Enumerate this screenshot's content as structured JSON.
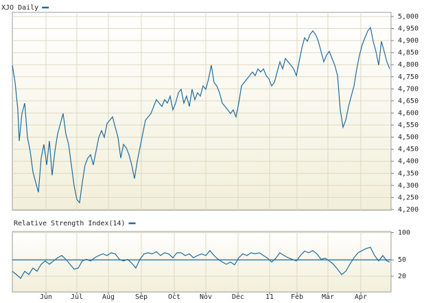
{
  "chart_data": [
    {
      "type": "line",
      "title": "XJO Daily",
      "xlim": [
        0,
        552
      ],
      "ylim": [
        4197,
        5017
      ],
      "yticks": [
        {
          "value": 4200,
          "label": "4,200"
        },
        {
          "value": 4250,
          "label": "4,250"
        },
        {
          "value": 4300,
          "label": "4,300"
        },
        {
          "value": 4350,
          "label": "4,350"
        },
        {
          "value": 4400,
          "label": "4,400"
        },
        {
          "value": 4450,
          "label": "4,450"
        },
        {
          "value": 4500,
          "label": "4,500"
        },
        {
          "value": 4550,
          "label": "4,550"
        },
        {
          "value": 4600,
          "label": "4,600"
        },
        {
          "value": 4650,
          "label": "4,650"
        },
        {
          "value": 4700,
          "label": "4,700"
        },
        {
          "value": 4750,
          "label": "4,750"
        },
        {
          "value": 4800,
          "label": "4,800"
        },
        {
          "value": 4850,
          "label": "4,850"
        },
        {
          "value": 4900,
          "label": "4,900"
        },
        {
          "value": 4950,
          "label": "4,950"
        },
        {
          "value": 5000,
          "label": "5,000"
        }
      ],
      "grid": true,
      "color": "#1c6b9e",
      "x": [
        0,
        4,
        8,
        10,
        14,
        18,
        22,
        26,
        30,
        34,
        38,
        42,
        46,
        50,
        54,
        58,
        62,
        66,
        70,
        74,
        78,
        82,
        86,
        90,
        94,
        98,
        102,
        106,
        110,
        114,
        118,
        122,
        126,
        130,
        134,
        138,
        142,
        146,
        150,
        154,
        158,
        162,
        166,
        170,
        174,
        178,
        182,
        186,
        190,
        194,
        198,
        202,
        206,
        210,
        214,
        218,
        222,
        226,
        230,
        234,
        238,
        242,
        246,
        250,
        254,
        258,
        262,
        266,
        270,
        274,
        278,
        282,
        286,
        290,
        294,
        298,
        302,
        306,
        310,
        314,
        318,
        322,
        326,
        330,
        334,
        338,
        342,
        346,
        350,
        354,
        358,
        362,
        366,
        370,
        374,
        378,
        382,
        386,
        390,
        394,
        398,
        402,
        406,
        410,
        414,
        418,
        422,
        426,
        430,
        434,
        438,
        442,
        446,
        450,
        454,
        458,
        462,
        466,
        470,
        474,
        478,
        482,
        486,
        490,
        494,
        498,
        502,
        506,
        510,
        514,
        518,
        522,
        526,
        530,
        534,
        538,
        542,
        546,
        550
      ],
      "values": [
        4798,
        4727,
        4613,
        4484,
        4598,
        4641,
        4499,
        4442,
        4356,
        4313,
        4271,
        4413,
        4470,
        4385,
        4484,
        4342,
        4442,
        4513,
        4556,
        4598,
        4513,
        4470,
        4385,
        4299,
        4242,
        4228,
        4313,
        4385,
        4413,
        4427,
        4385,
        4442,
        4499,
        4527,
        4499,
        4556,
        4570,
        4584,
        4541,
        4499,
        4413,
        4470,
        4456,
        4427,
        4385,
        4328,
        4399,
        4456,
        4513,
        4570,
        4584,
        4598,
        4627,
        4655,
        4641,
        4627,
        4655,
        4641,
        4670,
        4613,
        4641,
        4684,
        4698,
        4641,
        4670,
        4627,
        4698,
        4655,
        4684,
        4670,
        4712,
        4698,
        4741,
        4798,
        4727,
        4712,
        4684,
        4641,
        4627,
        4613,
        4598,
        4613,
        4584,
        4641,
        4712,
        4727,
        4741,
        4755,
        4770,
        4755,
        4783,
        4770,
        4783,
        4755,
        4741,
        4712,
        4727,
        4770,
        4812,
        4783,
        4826,
        4812,
        4798,
        4783,
        4755,
        4812,
        4869,
        4912,
        4897,
        4926,
        4940,
        4926,
        4897,
        4855,
        4812,
        4840,
        4855,
        4826,
        4798,
        4755,
        4613,
        4541,
        4570,
        4627,
        4670,
        4712,
        4783,
        4840,
        4883,
        4912,
        4940,
        4954,
        4897,
        4855,
        4798,
        4897,
        4855,
        4812,
        4783
      ]
    },
    {
      "type": "line",
      "title": "Relative Strength Index(14)",
      "xlim": [
        0,
        552
      ],
      "ylim": [
        -9,
        102
      ],
      "xticks": [
        {
          "value": 49,
          "label": "Jun"
        },
        {
          "value": 94,
          "label": "Jul"
        },
        {
          "value": 140,
          "label": "Aug"
        },
        {
          "value": 188,
          "label": "Sep"
        },
        {
          "value": 236,
          "label": "Oct"
        },
        {
          "value": 282,
          "label": "Nov"
        },
        {
          "value": 329,
          "label": "Dec"
        },
        {
          "value": 375,
          "label": "11"
        },
        {
          "value": 415,
          "label": "Feb"
        },
        {
          "value": 460,
          "label": "Mar"
        },
        {
          "value": 508,
          "label": "Apr"
        }
      ],
      "yticks": [
        20,
        50,
        100
      ],
      "reference_line": 50,
      "grid": true,
      "color": "#1c6b9e",
      "x": [
        0,
        6,
        12,
        18,
        24,
        30,
        36,
        42,
        48,
        54,
        60,
        66,
        72,
        78,
        84,
        90,
        96,
        102,
        108,
        114,
        120,
        126,
        132,
        138,
        144,
        150,
        156,
        162,
        168,
        174,
        180,
        186,
        192,
        198,
        204,
        210,
        216,
        222,
        228,
        234,
        240,
        246,
        252,
        258,
        264,
        270,
        276,
        282,
        288,
        294,
        300,
        306,
        312,
        318,
        324,
        330,
        336,
        342,
        348,
        354,
        360,
        366,
        372,
        378,
        384,
        390,
        396,
        402,
        408,
        414,
        420,
        426,
        432,
        438,
        444,
        450,
        456,
        462,
        468,
        474,
        480,
        486,
        492,
        498,
        504,
        510,
        516,
        522,
        528,
        534,
        540,
        546,
        550
      ],
      "values": [
        29,
        23,
        16,
        29,
        23,
        35,
        29,
        42,
        48,
        42,
        48,
        54,
        58,
        51,
        42,
        33,
        35,
        48,
        51,
        48,
        54,
        58,
        61,
        58,
        63,
        61,
        51,
        48,
        51,
        44,
        35,
        51,
        61,
        63,
        61,
        65,
        58,
        63,
        61,
        54,
        63,
        63,
        58,
        61,
        54,
        58,
        61,
        58,
        67,
        58,
        51,
        46,
        42,
        46,
        41,
        54,
        61,
        58,
        63,
        61,
        63,
        58,
        53,
        46,
        53,
        63,
        58,
        54,
        51,
        48,
        58,
        66,
        63,
        67,
        61,
        51,
        53,
        48,
        42,
        33,
        23,
        29,
        42,
        54,
        63,
        67,
        71,
        73,
        58,
        48,
        58,
        48,
        46
      ]
    }
  ]
}
